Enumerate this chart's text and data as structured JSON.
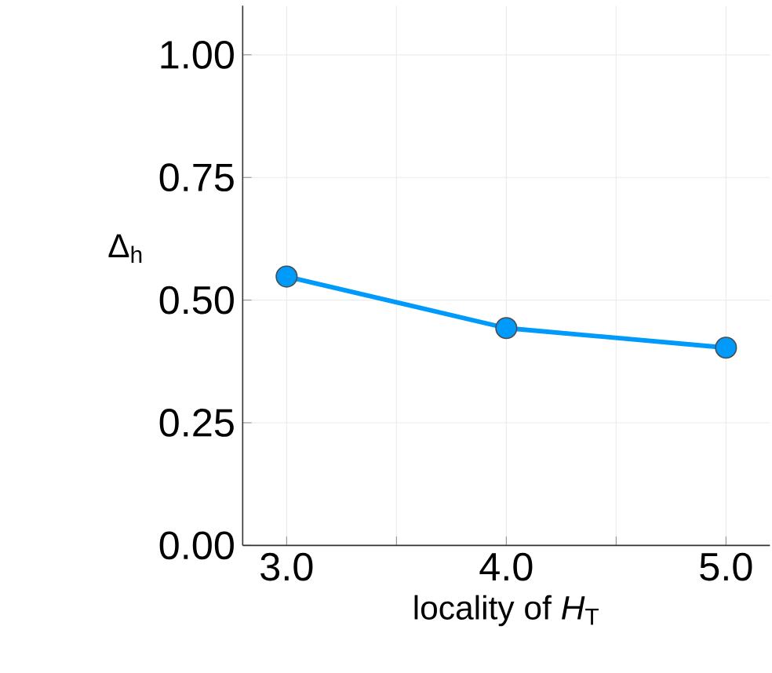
{
  "chart_data": {
    "type": "line",
    "xlabel": "locality of *H*$_{T}$",
    "ylabel": "Δ$_{h}$",
    "x": [
      3.0,
      4.0,
      5.0
    ],
    "series": [
      {
        "color": "#009afa",
        "values": [
          0.548,
          0.443,
          0.403
        ]
      }
    ],
    "xlim": [
      2.8,
      5.2
    ],
    "xticks": [
      {
        "value": 3.0,
        "label": "3.0"
      },
      {
        "value": 3.5,
        "label": null
      },
      {
        "value": 4.0,
        "label": "4.0"
      },
      {
        "value": 4.5,
        "label": null
      },
      {
        "value": 5.0,
        "label": "5.0"
      }
    ],
    "ylim": [
      0,
      1.1
    ],
    "yticks": [
      {
        "value": 0,
        "label": "0.00"
      },
      {
        "value": 0.25,
        "label": "0.25"
      },
      {
        "value": 0.5,
        "label": "0.50"
      },
      {
        "value": 0.75,
        "label": "0.75"
      },
      {
        "value": 1.0,
        "label": "1.00"
      }
    ],
    "grid": true,
    "marker": "circle",
    "line_style": "solid"
  }
}
